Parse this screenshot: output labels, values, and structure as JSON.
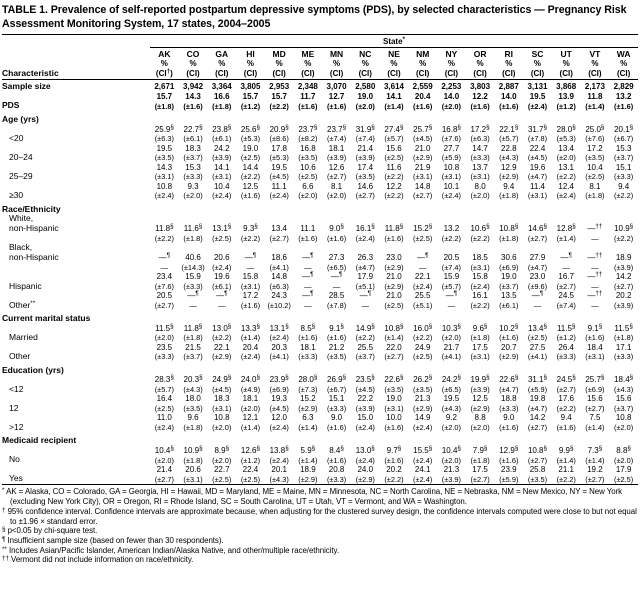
{
  "title": "TABLE 1. Prevalence of self-reported postpartum depressive symptoms (PDS), by selected characteristics — Pregnancy Risk Assessment Monitoring System, 17 states, 2004–2005",
  "header": {
    "group_label": "State*",
    "characteristic_label": "Characteristic",
    "percent_label": "%",
    "ci_label_first": "(CI†)",
    "ci_label": "(CI)",
    "states": [
      "AK",
      "CO",
      "GA",
      "HI",
      "MD",
      "ME",
      "MN",
      "NC",
      "NE",
      "NM",
      "NY",
      "OR",
      "RI",
      "SC",
      "UT",
      "VT",
      "WA"
    ]
  },
  "table": {
    "rows": [
      {
        "l": "Sample size",
        "b": 1,
        "n": [
          "2,671",
          "3,942",
          "3,364",
          "3,805",
          "2,953",
          "2,348",
          "3,070",
          "2,580",
          "3,614",
          "2,559",
          "2,253",
          "3,803",
          "2,887",
          "3,131",
          "3,868",
          "2,173",
          "2,829"
        ]
      },
      {
        "l": "PDS",
        "b": 1,
        "v": [
          "15.7",
          "14.3",
          "16.6",
          "15.7",
          "15.7",
          "11.7",
          "12.7",
          "19.0",
          "14.1",
          "20.4",
          "14.0",
          "12.2",
          "14.0",
          "19.5",
          "13.9",
          "11.8",
          "13.2"
        ],
        "c": [
          "(±1.8)",
          "(±1.6)",
          "(±1.8)",
          "(±1.2)",
          "(±2.2)",
          "(±1.6)",
          "(±1.6)",
          "(±2.0)",
          "(±1.4)",
          "(±1.6)",
          "(±2.0)",
          "(±1.6)",
          "(±1.6)",
          "(±2.4)",
          "(±1.2)",
          "(±1.4)",
          "(±1.6)"
        ]
      },
      {
        "s": "Age (yrs)"
      },
      {
        "l": "<20",
        "ind": 1,
        "v": [
          "25.9§",
          "22.7§",
          "23.8§",
          "25.6§",
          "20.9§",
          "23.7§",
          "23.7§",
          "31.9§",
          "27.4§",
          "25.7§",
          "16.8§",
          "17.2§",
          "22.1§",
          "31.7§",
          "28.0§",
          "25.0§",
          "20.1§"
        ],
        "c": [
          "(±6.3)",
          "(±6.1)",
          "(±6.1)",
          "(±5.3)",
          "(±8.6)",
          "(±8.2)",
          "(±7.4)",
          "(±7.4)",
          "(±5.7)",
          "(±4.5)",
          "(±7.6)",
          "(±6.3)",
          "(±5.7)",
          "(±7.8)",
          "(±5.3)",
          "(±7.6)",
          "(±6.7)"
        ]
      },
      {
        "l": "20–24",
        "ind": 1,
        "v": [
          "19.5",
          "18.3",
          "24.2",
          "19.0",
          "17.8",
          "16.8",
          "18.1",
          "21.4",
          "15.6",
          "21.0",
          "27.7",
          "14.7",
          "22.8",
          "22.4",
          "13.4",
          "17.2",
          "15.3"
        ],
        "c": [
          "(±3.5)",
          "(±3.7)",
          "(±3.9)",
          "(±2.5)",
          "(±5.3)",
          "(±3.5)",
          "(±3.9)",
          "(±3.9)",
          "(±2.5)",
          "(±2.9)",
          "(±5.9)",
          "(±3.3)",
          "(±4.3)",
          "(±4.5)",
          "(±2.0)",
          "(±3.5)",
          "(±3.7)"
        ]
      },
      {
        "l": "25–29",
        "ind": 1,
        "v": [
          "14.3",
          "15.3",
          "14.1",
          "14.4",
          "19.5",
          "10.6",
          "12.6",
          "17.4",
          "11.6",
          "21.9",
          "10.8",
          "13.7",
          "12.9",
          "19.6",
          "13.1",
          "10.4",
          "15.1"
        ],
        "c": [
          "(±3.1)",
          "(±3.3)",
          "(±3.1)",
          "(±2.2)",
          "(±4.5)",
          "(±2.5)",
          "(±2.7)",
          "(±3.5)",
          "(±2.2)",
          "(±3.1)",
          "(±3.1)",
          "(±3.1)",
          "(±2.9)",
          "(±4.7)",
          "(±2.2)",
          "(±2.5)",
          "(±3.3)"
        ]
      },
      {
        "l": "≥30",
        "ind": 1,
        "v": [
          "10.8",
          "9.3",
          "10.4",
          "12.5",
          "11.1",
          "6.6",
          "8.1",
          "14.6",
          "12.2",
          "14.8",
          "10.1",
          "8.0",
          "9.4",
          "11.4",
          "12.4",
          "8.1",
          "9.4"
        ],
        "c": [
          "(±2.4)",
          "(±2.0)",
          "(±2.4)",
          "(±1.6)",
          "(±2.4)",
          "(±2.0)",
          "(±2.0)",
          "(±2.7)",
          "(±2.2)",
          "(±2.7)",
          "(±2.4)",
          "(±2.0)",
          "(±1.8)",
          "(±3.1)",
          "(±2.4)",
          "(±1.8)",
          "(±2.2)"
        ]
      },
      {
        "s": "Race/Ethnicity"
      },
      {
        "l": "White,",
        "l2": "non-Hispanic",
        "ind": 1,
        "v": [
          "11.8§",
          "11.6§",
          "13.1§",
          "9.3§",
          "13.4",
          "11.1",
          "9.0§",
          "16.1§",
          "11.8§",
          "15.2§",
          "13.2",
          "10.6§",
          "10.8§",
          "14.6§",
          "12.8§",
          "—††",
          "10.9§"
        ],
        "c": [
          "(±2.2)",
          "(±1.8)",
          "(±2.5)",
          "(±2.2)",
          "(±2.7)",
          "(±1.6)",
          "(±1.6)",
          "(±2.4)",
          "(±1.6)",
          "(±2.5)",
          "(±2.2)",
          "(±2.2)",
          "(±1.8)",
          "(±2.7)",
          "(±1.4)",
          "—",
          "(±2.2)"
        ]
      },
      {
        "l": "Black,",
        "l2": "non-Hispanic",
        "ind": 1,
        "v": [
          "—¶",
          "40.6",
          "20.6",
          "—¶",
          "18.6",
          "—¶",
          "27.3",
          "26.3",
          "23.0",
          "—¶",
          "20.5",
          "18.5",
          "30.6",
          "27.9",
          "—¶",
          "—††",
          "18.9"
        ],
        "c": [
          "—",
          "(±14.3)",
          "(±2.4)",
          "—",
          "(±4.1)",
          "—",
          "(±6.5)",
          "(±4.7)",
          "(±2.9)",
          "—",
          "(±7.4)",
          "(±3.1)",
          "(±6.9)",
          "(±4.7)",
          "—",
          "—",
          "(±3.9)"
        ]
      },
      {
        "l": "Hispanic",
        "ind": 1,
        "v": [
          "23.4",
          "15.9",
          "19.6",
          "15.8",
          "14.8",
          "—¶",
          "—¶",
          "17.9",
          "21.0",
          "22.1",
          "15.9",
          "15.8",
          "19.0",
          "23.0",
          "16.7",
          "—††",
          "14.2"
        ],
        "c": [
          "(±7.6)",
          "(±3.3)",
          "(±6.1)",
          "(±3.1)",
          "(±6.3)",
          "—",
          "—",
          "(±5.1)",
          "(±2.9)",
          "(±2.4)",
          "(±5.7)",
          "(±2.4)",
          "(±3.7)",
          "(±9.6)",
          "(±2.7)",
          "—",
          "(±2.7)"
        ]
      },
      {
        "l": "Other**",
        "ind": 1,
        "v": [
          "20.5",
          "—¶",
          "—¶",
          "17.2",
          "24.3",
          "—¶",
          "28.5",
          "—¶",
          "21.0",
          "25.5",
          "—¶",
          "16.1",
          "13.5",
          "—¶",
          "24.5",
          "—††",
          "20.2"
        ],
        "c": [
          "(±2.7)",
          "—",
          "—",
          "(±1.6)",
          "(±10.2)",
          "—",
          "(±7.8)",
          "—",
          "(±2.5)",
          "(±5.1)",
          "—",
          "(±2.2)",
          "(±6.1)",
          "—",
          "(±7.4)",
          "—",
          "(±3.9)"
        ]
      },
      {
        "s": "Current marital status"
      },
      {
        "l": "Married",
        "ind": 1,
        "v": [
          "11.5§",
          "11.8§",
          "13.0§",
          "13.3§",
          "13.1§",
          "8.5§",
          "9.1§",
          "14.9§",
          "10.8§",
          "16.0§",
          "10.3§",
          "9.6§",
          "10.2§",
          "13.4§",
          "11.5§",
          "9.1§",
          "11.5§"
        ],
        "c": [
          "(±2.0)",
          "(±1.8)",
          "(±2.2)",
          "(±1.4)",
          "(±2.4)",
          "(±1.6)",
          "(±1.6)",
          "(±2.2)",
          "(±1.4)",
          "(±2.2)",
          "(±2.0)",
          "(±1.8)",
          "(±1.6)",
          "(±2.5)",
          "(±1.2)",
          "(±1.6)",
          "(±1.8)"
        ]
      },
      {
        "l": "Other",
        "ind": 1,
        "v": [
          "23.5",
          "21.5",
          "22.1",
          "20.4",
          "20.3",
          "18.1",
          "21.2",
          "25.5",
          "22.0",
          "24.9",
          "21.7",
          "17.5",
          "20.7",
          "27.5",
          "26.4",
          "18.4",
          "17.1"
        ],
        "c": [
          "(±3.3)",
          "(±3.7)",
          "(±2.9)",
          "(±2.4)",
          "(±4.1)",
          "(±3.3)",
          "(±3.5)",
          "(±3.7)",
          "(±2.7)",
          "(±2.5)",
          "(±4.1)",
          "(±3.1)",
          "(±2.9)",
          "(±4.1)",
          "(±3.3)",
          "(±3.1)",
          "(±3.3)"
        ]
      },
      {
        "s": "Education (yrs)"
      },
      {
        "l": "<12",
        "ind": 1,
        "v": [
          "28.3§",
          "20.3§",
          "24.9§",
          "24.0§",
          "23.9§",
          "28.0§",
          "26.9§",
          "23.5§",
          "22.6§",
          "26.2§",
          "24.2§",
          "19.9§",
          "22.6§",
          "31.1§",
          "24.5§",
          "25.7§",
          "18.4§"
        ],
        "c": [
          "(±5.7)",
          "(±4.3)",
          "(±4.5)",
          "(±4.9)",
          "(±6.9)",
          "(±7.3)",
          "(±6.7)",
          "(±4.5)",
          "(±3.5)",
          "(±3.5)",
          "(±6.5)",
          "(±3.9)",
          "(±4.7)",
          "(±5.9)",
          "(±2.7)",
          "(±6.9)",
          "(±4.3)"
        ]
      },
      {
        "l": "12",
        "ind": 1,
        "v": [
          "16.4",
          "18.0",
          "18.3",
          "18.1",
          "19.3",
          "15.2",
          "15.1",
          "22.2",
          "19.0",
          "21.3",
          "19.5",
          "12.5",
          "18.8",
          "19.8",
          "17.6",
          "15.6",
          "15.6"
        ],
        "c": [
          "(±2.5)",
          "(±3.5)",
          "(±3.1)",
          "(±2.0)",
          "(±4.5)",
          "(±2.9)",
          "(±3.3)",
          "(±3.9)",
          "(±3.1)",
          "(±2.9)",
          "(±4.3)",
          "(±2.9)",
          "(±3.3)",
          "(±4.7)",
          "(±2.2)",
          "(±2.7)",
          "(±3.7)"
        ]
      },
      {
        "l": ">12",
        "ind": 1,
        "v": [
          "11.0",
          "9.6",
          "10.8",
          "12.1",
          "12.0",
          "6.3",
          "9.0",
          "15.0",
          "10.0",
          "14.9",
          "9.2",
          "8.8",
          "9.0",
          "14.2",
          "9.4",
          "7.5",
          "10.8"
        ],
        "c": [
          "(±2.4)",
          "(±1.8)",
          "(±2.0)",
          "(±1.4)",
          "(±2.4)",
          "(±1.4)",
          "(±1.6)",
          "(±2.4)",
          "(±1.6)",
          "(±2.4)",
          "(±2.0)",
          "(±2.0)",
          "(±1.6)",
          "(±2.7)",
          "(±1.6)",
          "(±1.4)",
          "(±2.0)"
        ]
      },
      {
        "s": "Medicaid recipient"
      },
      {
        "l": "No",
        "ind": 1,
        "v": [
          "10.4§",
          "10.9§",
          "8.9§",
          "12.6§",
          "13.8§",
          "5.9§",
          "8.4§",
          "13.0§",
          "9.7§",
          "15.5§",
          "10.4§",
          "7.9§",
          "12.9§",
          "10.8§",
          "9.9§",
          "7.3§",
          "8.8§"
        ],
        "c": [
          "(±2.0)",
          "(±1.8)",
          "(±2.0)",
          "(±1.2)",
          "(±2.4)",
          "(±1.4)",
          "(±1.6)",
          "(±2.4)",
          "(±1.6)",
          "(±2.4)",
          "(±2.0)",
          "(±1.8)",
          "(±1.6)",
          "(±2.7)",
          "(±1.4)",
          "(±1.4)",
          "(±2.0)"
        ]
      },
      {
        "l": "Yes",
        "ind": 1,
        "v": [
          "21.4",
          "20.6",
          "22.7",
          "22.4",
          "20.1",
          "18.9",
          "20.8",
          "24.0",
          "20.2",
          "24.1",
          "21.3",
          "17.5",
          "23.9",
          "25.8",
          "21.1",
          "19.2",
          "17.9"
        ],
        "c": [
          "(±2.7)",
          "(±3.1)",
          "(±2.5)",
          "(±2.5)",
          "(±4.3)",
          "(±2.9)",
          "(±3.3)",
          "(±2.9)",
          "(±2.2)",
          "(±2.4)",
          "(±3.9)",
          "(±2.7)",
          "(±5.9)",
          "(±3.5)",
          "(±2.2)",
          "(±2.7)",
          "(±2.5)"
        ]
      }
    ]
  },
  "footnotes": [
    {
      "sym": "*",
      "text": "AK = Alaska, CO = Colorado, GA = Georgia, HI = Hawaii, MD = Maryland, ME = Maine, MN = Minnesota, NC = North Carolina, NE = Nebraska, NM = New Mexico, NY = New York (excluding New York City), OR = Oregon, RI = Rhode Island, SC = South Carolina, UT = Utah, VT = Vermont, and WA = Washington."
    },
    {
      "sym": "†",
      "text": "95% confidence interval. Confidence intervals are approximate because, when adjusting for the clustered survey design, the confidence intervals computed were close to but not equal to ±1.96 × standard error."
    },
    {
      "sym": "§",
      "text": "p<0.05 by chi-square test."
    },
    {
      "sym": "¶",
      "text": "Insufficient sample size (based on fewer than 30 respondents)."
    },
    {
      "sym": "**",
      "text": "Includes Asian/Pacific Islander, American Indian/Alaska Native, and other/multiple race/ethnicity."
    },
    {
      "sym": "††",
      "text": "Vermont did not include information on race/ethnicity."
    }
  ]
}
